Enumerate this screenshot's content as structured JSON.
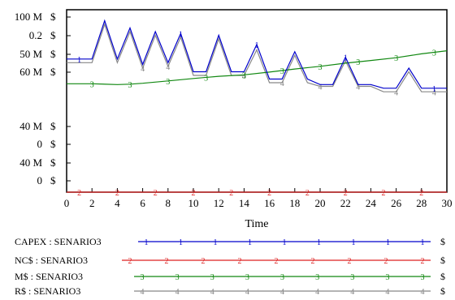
{
  "chart_data": {
    "type": "line",
    "title": "",
    "xlabel": "Time",
    "ylabel": "",
    "xlim": [
      0,
      30
    ],
    "x_ticks": [
      0,
      2,
      4,
      6,
      8,
      10,
      12,
      14,
      16,
      18,
      20,
      22,
      24,
      26,
      28,
      30
    ],
    "y_tick_labels": [
      {
        "value": "100 M",
        "unit": "$"
      },
      {
        "value": "0.2",
        "unit": "$"
      },
      {
        "value": "50 M",
        "unit": "$"
      },
      {
        "value": "60 M",
        "unit": "$"
      },
      {
        "value": "40 M",
        "unit": "$"
      },
      {
        "value": "0",
        "unit": "$"
      },
      {
        "value": "40 M",
        "unit": "$"
      },
      {
        "value": "0",
        "unit": "$"
      }
    ],
    "series": [
      {
        "name": "CAPEX : SENARIO3",
        "marker": "1",
        "unit": "$",
        "color": "#0000cc",
        "points": [
          [
            0,
            0.73
          ],
          [
            2,
            0.73
          ],
          [
            3,
            0.94
          ],
          [
            4,
            0.73
          ],
          [
            5,
            0.9
          ],
          [
            6,
            0.7
          ],
          [
            7,
            0.88
          ],
          [
            8,
            0.71
          ],
          [
            9,
            0.87
          ],
          [
            10,
            0.66
          ],
          [
            11,
            0.66
          ],
          [
            12,
            0.86
          ],
          [
            13,
            0.66
          ],
          [
            14,
            0.66
          ],
          [
            15,
            0.81
          ],
          [
            16,
            0.62
          ],
          [
            17,
            0.62
          ],
          [
            18,
            0.77
          ],
          [
            19,
            0.62
          ],
          [
            20,
            0.59
          ],
          [
            21,
            0.59
          ],
          [
            22,
            0.74
          ],
          [
            23,
            0.59
          ],
          [
            24,
            0.59
          ],
          [
            25,
            0.57
          ],
          [
            26,
            0.57
          ],
          [
            27,
            0.68
          ],
          [
            28,
            0.57
          ],
          [
            29,
            0.57
          ],
          [
            30,
            0.57
          ]
        ]
      },
      {
        "name": "NC$ : SENARIO3",
        "marker": "2",
        "unit": "$",
        "color": "#dd2222",
        "points": [
          [
            0,
            0.0
          ],
          [
            30,
            0.0
          ]
        ]
      },
      {
        "name": "M$ : SENARIO3",
        "marker": "3",
        "unit": "$",
        "color": "#118811",
        "points": [
          [
            0,
            0.594
          ],
          [
            2,
            0.594
          ],
          [
            4,
            0.59
          ],
          [
            5,
            0.592
          ],
          [
            6,
            0.597
          ],
          [
            8,
            0.61
          ],
          [
            10,
            0.623
          ],
          [
            12,
            0.635
          ],
          [
            14,
            0.643
          ],
          [
            16,
            0.658
          ],
          [
            18,
            0.675
          ],
          [
            20,
            0.69
          ],
          [
            22,
            0.707
          ],
          [
            24,
            0.722
          ],
          [
            26,
            0.737
          ],
          [
            28,
            0.758
          ],
          [
            30,
            0.775
          ]
        ]
      },
      {
        "name": "R$ : SENARIO3",
        "marker": "4",
        "unit": "$",
        "color": "#888888",
        "points": [
          [
            0,
            0.71
          ],
          [
            2,
            0.71
          ],
          [
            3,
            0.92
          ],
          [
            4,
            0.71
          ],
          [
            5,
            0.88
          ],
          [
            6,
            0.68
          ],
          [
            7,
            0.86
          ],
          [
            8,
            0.69
          ],
          [
            9,
            0.85
          ],
          [
            10,
            0.64
          ],
          [
            11,
            0.64
          ],
          [
            12,
            0.84
          ],
          [
            13,
            0.64
          ],
          [
            14,
            0.64
          ],
          [
            15,
            0.78
          ],
          [
            16,
            0.6
          ],
          [
            17,
            0.6
          ],
          [
            18,
            0.75
          ],
          [
            19,
            0.6
          ],
          [
            20,
            0.58
          ],
          [
            21,
            0.58
          ],
          [
            22,
            0.72
          ],
          [
            23,
            0.58
          ],
          [
            24,
            0.58
          ],
          [
            25,
            0.55
          ],
          [
            26,
            0.55
          ],
          [
            27,
            0.66
          ],
          [
            28,
            0.55
          ],
          [
            29,
            0.55
          ],
          [
            30,
            0.55
          ]
        ]
      }
    ],
    "legend_position": "bottom",
    "grid": false
  }
}
